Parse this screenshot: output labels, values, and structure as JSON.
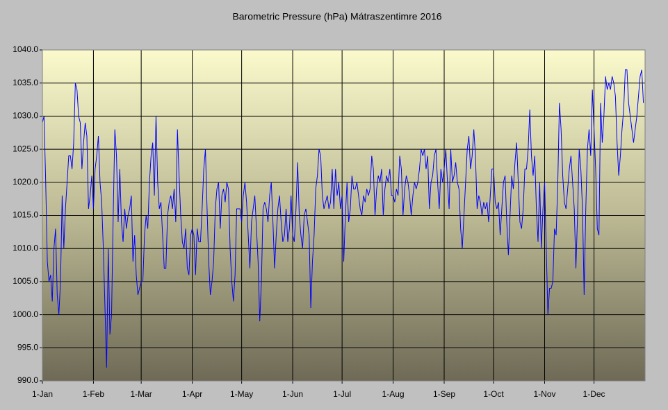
{
  "chart_data": {
    "type": "line",
    "title": "Barometric Pressure (hPa) Mátraszentimre 2016",
    "categories": [
      "1-Jan",
      null,
      null,
      null,
      null,
      null,
      null,
      null,
      null,
      null,
      null,
      null,
      null,
      null,
      null,
      null,
      null,
      null,
      null,
      null,
      null,
      null,
      null,
      null,
      null,
      null,
      null,
      null,
      null,
      null,
      null,
      "1-Feb",
      null,
      null,
      null,
      null,
      null,
      null,
      null,
      null,
      null,
      null,
      null,
      null,
      null,
      null,
      null,
      null,
      null,
      null,
      null,
      null,
      null,
      null,
      null,
      null,
      null,
      null,
      null,
      null,
      "1-Mar",
      null,
      null,
      null,
      null,
      null,
      null,
      null,
      null,
      null,
      null,
      null,
      null,
      null,
      null,
      null,
      null,
      null,
      null,
      null,
      null,
      null,
      null,
      null,
      null,
      null,
      null,
      null,
      null,
      null,
      null,
      "1-Apr",
      null,
      null,
      null,
      null,
      null,
      null,
      null,
      null,
      null,
      null,
      null,
      null,
      null,
      null,
      null,
      null,
      null,
      null,
      null,
      null,
      null,
      null,
      null,
      null,
      null,
      null,
      null,
      null,
      null,
      "1-May",
      null,
      null,
      null,
      null,
      null,
      null,
      null,
      null,
      null,
      null,
      null,
      null,
      null,
      null,
      null,
      null,
      null,
      null,
      null,
      null,
      null,
      null,
      null,
      null,
      null,
      null,
      null,
      null,
      null,
      null,
      "1-Jun",
      null,
      null,
      null,
      null,
      null,
      null,
      null,
      null,
      null,
      null,
      null,
      null,
      null,
      null,
      null,
      null,
      null,
      null,
      null,
      null,
      null,
      null,
      null,
      null,
      null,
      null,
      null,
      null,
      null,
      "1-Jul",
      null,
      null,
      null,
      null,
      null,
      null,
      null,
      null,
      null,
      null,
      null,
      null,
      null,
      null,
      null,
      null,
      null,
      null,
      null,
      null,
      null,
      null,
      null,
      null,
      null,
      null,
      null,
      null,
      null,
      null,
      "1-Aug",
      null,
      null,
      null,
      null,
      null,
      null,
      null,
      null,
      null,
      null,
      null,
      null,
      null,
      null,
      null,
      null,
      null,
      null,
      null,
      null,
      null,
      null,
      null,
      null,
      null,
      null,
      null,
      null,
      null,
      null,
      "1-Sep",
      null,
      null,
      null,
      null,
      null,
      null,
      null,
      null,
      null,
      null,
      null,
      null,
      null,
      null,
      null,
      null,
      null,
      null,
      null,
      null,
      null,
      null,
      null,
      null,
      null,
      null,
      null,
      null,
      null,
      "1-Oct",
      null,
      null,
      null,
      null,
      null,
      null,
      null,
      null,
      null,
      null,
      null,
      null,
      null,
      null,
      null,
      null,
      null,
      null,
      null,
      null,
      null,
      null,
      null,
      null,
      null,
      null,
      null,
      null,
      null,
      null,
      "1-Nov",
      null,
      null,
      null,
      null,
      null,
      null,
      null,
      null,
      null,
      null,
      null,
      null,
      null,
      null,
      null,
      null,
      null,
      null,
      null,
      null,
      null,
      null,
      null,
      null,
      null,
      null,
      null,
      null,
      null,
      "1-Dec",
      null,
      null,
      null,
      null,
      null,
      null,
      null,
      null,
      null,
      null,
      null,
      null,
      null,
      null,
      null,
      null,
      null,
      null,
      null,
      null,
      null,
      null,
      null,
      null,
      null,
      null,
      null,
      null,
      null,
      null
    ],
    "series": [
      {
        "name": "Barometric Pressure",
        "color": "#0000ff",
        "values": [
          1029,
          1030,
          1020,
          1008,
          1005,
          1006,
          1002,
          1010,
          1013,
          1003,
          1000,
          1005,
          1018,
          1010,
          1016,
          1020,
          1024,
          1024,
          1022,
          1026,
          1035,
          1034,
          1030,
          1029,
          1022,
          1026,
          1029,
          1027,
          1016,
          1018,
          1021,
          1016,
          1022,
          1024,
          1027,
          1020,
          1017,
          1010,
          1001,
          992,
          1010,
          997,
          1000,
          1015,
          1028,
          1024,
          1014,
          1022,
          1014,
          1011,
          1016,
          1013,
          1015,
          1016,
          1018,
          1008,
          1012,
          1006,
          1003,
          1004,
          1005,
          1005,
          1012,
          1015,
          1013,
          1020,
          1024,
          1026,
          1018,
          1030,
          1020,
          1016,
          1017,
          1012,
          1007,
          1007,
          1015,
          1017,
          1018,
          1016,
          1019,
          1014,
          1028,
          1021,
          1015,
          1011,
          1010,
          1013,
          1007,
          1006,
          1012,
          1013,
          1012,
          1006,
          1013,
          1011,
          1011,
          1016,
          1022,
          1025,
          1016,
          1008,
          1003,
          1005,
          1008,
          1016,
          1019,
          1020,
          1013,
          1018,
          1019,
          1017,
          1020,
          1019,
          1010,
          1005,
          1002,
          1006,
          1016,
          1016,
          1016,
          1014,
          1018,
          1020,
          1017,
          1012,
          1007,
          1014,
          1016,
          1018,
          1013,
          1008,
          999,
          1005,
          1016,
          1017,
          1016,
          1014,
          1018,
          1020,
          1014,
          1007,
          1012,
          1016,
          1018,
          1014,
          1011,
          1012,
          1016,
          1011,
          1013,
          1018,
          1012,
          1011,
          1016,
          1023,
          1015,
          1012,
          1010,
          1015,
          1016,
          1014,
          1012,
          1001,
          1008,
          1012,
          1019,
          1021,
          1025,
          1024,
          1018,
          1016,
          1017,
          1018,
          1016,
          1017,
          1022,
          1016,
          1022,
          1018,
          1020,
          1016,
          1018,
          1008,
          1015,
          1020,
          1014,
          1016,
          1021,
          1019,
          1019,
          1020,
          1018,
          1016,
          1015,
          1018,
          1017,
          1019,
          1018,
          1019,
          1024,
          1022,
          1015,
          1019,
          1021,
          1020,
          1022,
          1015,
          1019,
          1021,
          1020,
          1022,
          1018,
          1018,
          1017,
          1019,
          1018,
          1024,
          1022,
          1015,
          1019,
          1021,
          1020,
          1018,
          1015,
          1018,
          1020,
          1019,
          1020,
          1022,
          1025,
          1024,
          1025,
          1022,
          1024,
          1016,
          1020,
          1021,
          1024,
          1025,
          1020,
          1016,
          1022,
          1020,
          1022,
          1025,
          1020,
          1016,
          1025,
          1020,
          1021,
          1023,
          1020,
          1019,
          1013,
          1010,
          1015,
          1020,
          1025,
          1027,
          1022,
          1024,
          1028,
          1024,
          1016,
          1018,
          1017,
          1015,
          1017,
          1016,
          1017,
          1014,
          1018,
          1022,
          1022,
          1017,
          1016,
          1017,
          1012,
          1016,
          1020,
          1021,
          1014,
          1009,
          1015,
          1021,
          1019,
          1023,
          1026,
          1020,
          1014,
          1013,
          1016,
          1022,
          1022,
          1025,
          1031,
          1024,
          1021,
          1024,
          1016,
          1011,
          1020,
          1010,
          1016,
          1020,
          1010,
          1000,
          1004,
          1004,
          1005,
          1013,
          1012,
          1020,
          1032,
          1028,
          1021,
          1017,
          1016,
          1019,
          1022,
          1024,
          1020,
          1016,
          1007,
          1015,
          1025,
          1022,
          1016,
          1003,
          1016,
          1025,
          1028,
          1024,
          1034,
          1028,
          1022,
          1013,
          1012,
          1032,
          1026,
          1030,
          1036,
          1034,
          1035,
          1034,
          1036,
          1035,
          1033,
          1026,
          1021,
          1024,
          1028,
          1031,
          1037,
          1037,
          1032,
          1030,
          1028,
          1026,
          1028,
          1030,
          1033,
          1036,
          1037,
          1032
        ]
      }
    ],
    "ylim": [
      990,
      1040
    ],
    "yticks": [
      {
        "value": 990,
        "label": "990.0"
      },
      {
        "value": 995,
        "label": "995.0"
      },
      {
        "value": 1000,
        "label": "1000.0"
      },
      {
        "value": 1005,
        "label": "1005.0"
      },
      {
        "value": 1010,
        "label": "1010.0"
      },
      {
        "value": 1015,
        "label": "1015.0"
      },
      {
        "value": 1020,
        "label": "1020.0"
      },
      {
        "value": 1025,
        "label": "1025.0"
      },
      {
        "value": 1030,
        "label": "1030.0"
      },
      {
        "value": 1035,
        "label": "1035.0"
      },
      {
        "value": 1040,
        "label": "1040.0"
      }
    ],
    "grid": true
  }
}
